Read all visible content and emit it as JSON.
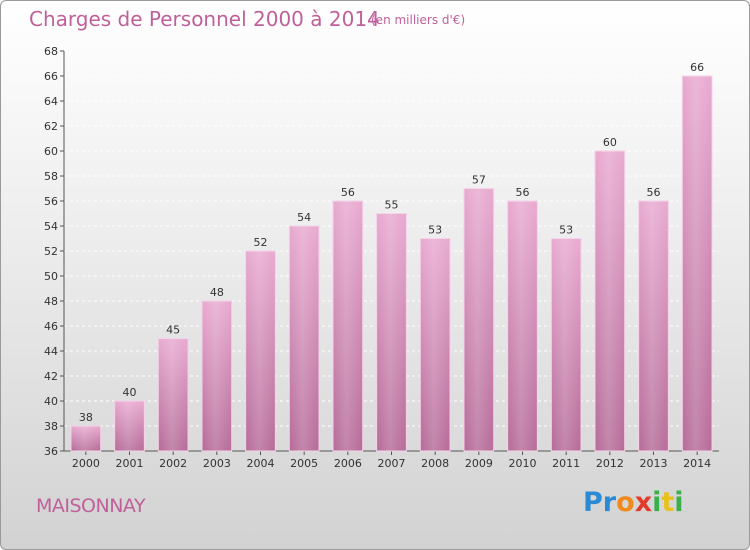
{
  "title": "Charges de Personnel 2000 à 2014",
  "unit": "(en milliers d'€)",
  "commune": "MAISONNAY",
  "logo": {
    "letters": [
      "P",
      "r",
      "o",
      "x",
      "i",
      "t",
      "i"
    ],
    "colors": [
      "#2a8ad6",
      "#2a8ad6",
      "#f08a1c",
      "#e23b2b",
      "#3bb04a",
      "#e8c21a",
      "#3bb04a"
    ]
  },
  "chart_data": {
    "type": "bar",
    "categories": [
      "2000",
      "2001",
      "2002",
      "2003",
      "2004",
      "2005",
      "2006",
      "2007",
      "2008",
      "2009",
      "2010",
      "2011",
      "2012",
      "2013",
      "2014"
    ],
    "values": [
      38,
      40,
      45,
      48,
      52,
      54,
      56,
      55,
      53,
      57,
      56,
      53,
      60,
      56,
      66
    ],
    "ylim": [
      36,
      68
    ],
    "yticks": [
      36,
      38,
      40,
      42,
      44,
      46,
      48,
      50,
      52,
      54,
      56,
      58,
      60,
      62,
      64,
      66,
      68
    ],
    "grid": true,
    "bar_color": "#d98dbd"
  }
}
